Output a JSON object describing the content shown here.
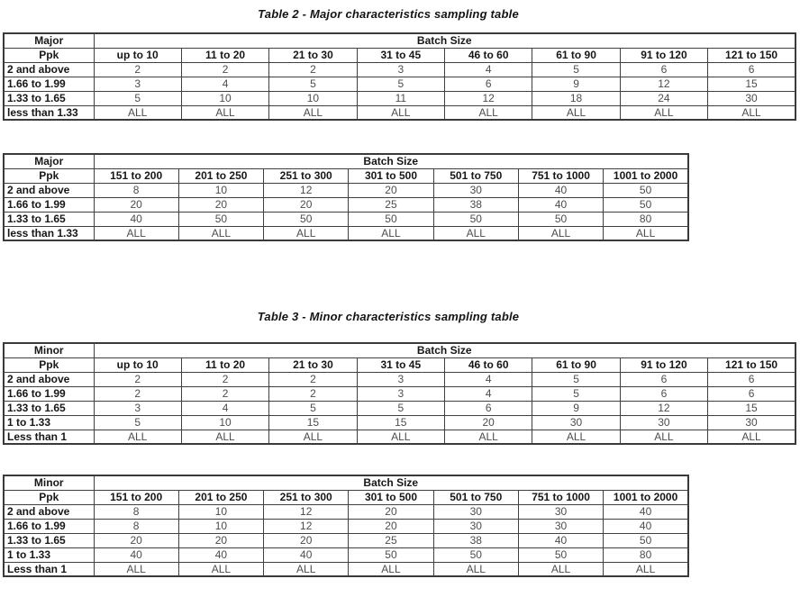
{
  "page": {
    "background": "#ffffff",
    "border_color": "#3a3a3a",
    "header_text_color": "#171717",
    "value_text_color": "#4d4d4d"
  },
  "tables": [
    {
      "title": "Table 2 - Major characteristics sampling table",
      "blocks": [
        {
          "corner": "Major",
          "span_header": "Batch Size",
          "row_header": "Ppk",
          "columns": [
            "up to 10",
            "11 to 20",
            "21 to 30",
            "31 to 45",
            "46 to 60",
            "61 to 90",
            "91 to 120",
            "121 to 150"
          ],
          "rows": [
            {
              "label": "2 and above",
              "values": [
                "2",
                "2",
                "2",
                "3",
                "4",
                "5",
                "6",
                "6"
              ]
            },
            {
              "label": "1.66 to 1.99",
              "values": [
                "3",
                "4",
                "5",
                "5",
                "6",
                "9",
                "12",
                "15"
              ]
            },
            {
              "label": "1.33 to 1.65",
              "values": [
                "5",
                "10",
                "10",
                "11",
                "12",
                "18",
                "24",
                "30"
              ]
            },
            {
              "label": "less than 1.33",
              "values": [
                "ALL",
                "ALL",
                "ALL",
                "ALL",
                "ALL",
                "ALL",
                "ALL",
                "ALL"
              ]
            }
          ]
        },
        {
          "corner": "Major",
          "span_header": "Batch Size",
          "row_header": "Ppk",
          "columns": [
            "151 to 200",
            "201 to 250",
            "251 to 300",
            "301 to 500",
            "501 to 750",
            "751 to 1000",
            "1001 to 2000"
          ],
          "rows": [
            {
              "label": "2 and above",
              "values": [
                "8",
                "10",
                "12",
                "20",
                "30",
                "40",
                "50"
              ]
            },
            {
              "label": "1.66 to 1.99",
              "values": [
                "20",
                "20",
                "20",
                "25",
                "38",
                "40",
                "50"
              ]
            },
            {
              "label": "1.33 to 1.65",
              "values": [
                "40",
                "50",
                "50",
                "50",
                "50",
                "50",
                "80"
              ]
            },
            {
              "label": "less than 1.33",
              "values": [
                "ALL",
                "ALL",
                "ALL",
                "ALL",
                "ALL",
                "ALL",
                "ALL"
              ]
            }
          ]
        }
      ]
    },
    {
      "title": "Table 3 - Minor characteristics sampling table",
      "blocks": [
        {
          "corner": "Minor",
          "span_header": "Batch Size",
          "row_header": "Ppk",
          "columns": [
            "up to 10",
            "11 to 20",
            "21 to 30",
            "31 to 45",
            "46 to 60",
            "61 to 90",
            "91 to 120",
            "121 to 150"
          ],
          "rows": [
            {
              "label": "2 and above",
              "values": [
                "2",
                "2",
                "2",
                "3",
                "4",
                "5",
                "6",
                "6"
              ]
            },
            {
              "label": "1.66 to 1.99",
              "values": [
                "2",
                "2",
                "2",
                "3",
                "4",
                "5",
                "6",
                "6"
              ]
            },
            {
              "label": "1.33 to 1.65",
              "values": [
                "3",
                "4",
                "5",
                "5",
                "6",
                "9",
                "12",
                "15"
              ]
            },
            {
              "label": "1 to 1.33",
              "values": [
                "5",
                "10",
                "15",
                "15",
                "20",
                "30",
                "30",
                "30"
              ]
            },
            {
              "label": "Less than 1",
              "values": [
                "ALL",
                "ALL",
                "ALL",
                "ALL",
                "ALL",
                "ALL",
                "ALL",
                "ALL"
              ]
            }
          ]
        },
        {
          "corner": "Minor",
          "span_header": "Batch Size",
          "row_header": "Ppk",
          "columns": [
            "151 to 200",
            "201 to 250",
            "251 to 300",
            "301 to 500",
            "501 to 750",
            "751 to 1000",
            "1001 to 2000"
          ],
          "rows": [
            {
              "label": "2 and above",
              "values": [
                "8",
                "10",
                "12",
                "20",
                "30",
                "30",
                "40"
              ]
            },
            {
              "label": "1.66 to 1.99",
              "values": [
                "8",
                "10",
                "12",
                "20",
                "30",
                "30",
                "40"
              ]
            },
            {
              "label": "1.33 to 1.65",
              "values": [
                "20",
                "20",
                "20",
                "25",
                "38",
                "40",
                "50"
              ]
            },
            {
              "label": "1 to 1.33",
              "values": [
                "40",
                "40",
                "40",
                "50",
                "50",
                "50",
                "80"
              ]
            },
            {
              "label": "Less than 1",
              "values": [
                "ALL",
                "ALL",
                "ALL",
                "ALL",
                "ALL",
                "ALL",
                "ALL"
              ]
            }
          ]
        }
      ]
    }
  ]
}
